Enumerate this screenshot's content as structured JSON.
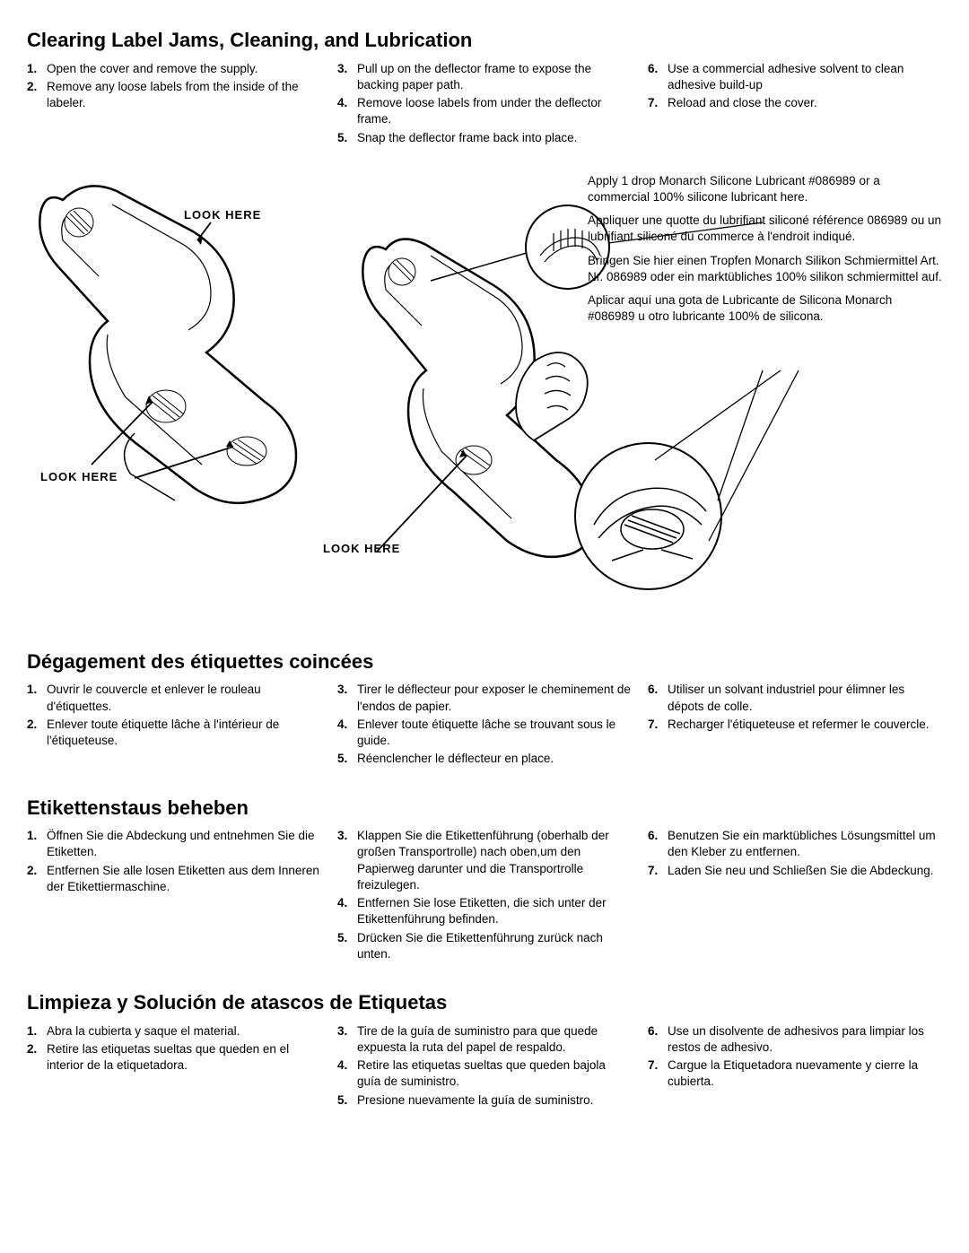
{
  "sections": {
    "en": {
      "title": "Clearing Label Jams, Cleaning, and Lubrication",
      "col1": [
        {
          "n": "1.",
          "t": "Open the cover and remove the supply."
        },
        {
          "n": "2.",
          "t": "Remove any loose labels from the inside of the labeler."
        }
      ],
      "col2": [
        {
          "n": "3.",
          "t": "Pull up on the deflector frame to expose the backing paper path."
        },
        {
          "n": "4.",
          "t": "Remove loose labels from under the deflector frame."
        },
        {
          "n": "5.",
          "t": "Snap the deflector frame back into place."
        }
      ],
      "col3": [
        {
          "n": "6.",
          "t": "Use a commercial adhesive solvent to clean adhesive build-up"
        },
        {
          "n": "7.",
          "t": "Reload and close the cover."
        }
      ]
    },
    "fr": {
      "title": "Dégagement des étiquettes coincées",
      "col1": [
        {
          "n": "1.",
          "t": "Ouvrir le couvercle et enlever le rouleau d'étiquettes."
        },
        {
          "n": "2.",
          "t": "Enlever toute étiquette lâche à l'intérieur de l'étiqueteuse."
        }
      ],
      "col2": [
        {
          "n": "3.",
          "t": "Tirer le déflecteur pour exposer le cheminement de l'endos de papier."
        },
        {
          "n": "4.",
          "t": "Enlever toute étiquette lâche se trouvant sous le guide."
        },
        {
          "n": "5.",
          "t": "Réenclencher le déflecteur en place."
        }
      ],
      "col3": [
        {
          "n": "6.",
          "t": "Utiliser un solvant industriel pour élimner les dépots de colle."
        },
        {
          "n": "7.",
          "t": "Recharger l'étiqueteuse et refermer le couvercle."
        }
      ]
    },
    "de": {
      "title": "Etikettenstaus beheben",
      "col1": [
        {
          "n": "1.",
          "t": "Öffnen Sie die Abdeckung und entnehmen Sie die Etiketten."
        },
        {
          "n": "2.",
          "t": "Entfernen Sie alle losen Etiketten aus dem Inneren der Etikettiermaschine."
        }
      ],
      "col2": [
        {
          "n": "3.",
          "t": "Klappen Sie die Etikettenführung (oberhalb der großen Transportrolle) nach oben,um den Papierweg darunter und die Transportrolle freizulegen."
        },
        {
          "n": "4.",
          "t": "Entfernen Sie lose Etiketten, die sich unter der Etikettenführung befinden."
        },
        {
          "n": "5.",
          "t": "Drücken Sie die Etikettenführung zurück nach unten."
        }
      ],
      "col3": [
        {
          "n": "6.",
          "t": "Benutzen Sie ein marktübliches Lösungsmittel um den Kleber zu entfernen."
        },
        {
          "n": "7.",
          "t": "Laden Sie neu und Schließen Sie die Abdeckung."
        }
      ]
    },
    "es": {
      "title": "Limpieza y Solución de atascos de Etiquetas",
      "col1": [
        {
          "n": "1.",
          "t": "Abra la cubierta y saque el material."
        },
        {
          "n": "2.",
          "t": "Retire las etiquetas sueltas que queden en el interior de la etiquetadora."
        }
      ],
      "col2": [
        {
          "n": "3.",
          "t": "Tire de la guía de suministro para que quede expuesta la ruta del papel de respaldo."
        },
        {
          "n": "4.",
          "t": "Retire las etiquetas sueltas que queden bajola guía de suministro."
        },
        {
          "n": "5.",
          "t": "Presione nuevamente la guía de suministro."
        }
      ],
      "col3": [
        {
          "n": "6.",
          "t": "Use un disolvente de adhesivos para limpiar los restos de adhesivo."
        },
        {
          "n": "7.",
          "t": "Cargue la Etiquetadora nuevamente y cierre la cubierta."
        }
      ]
    }
  },
  "labels": {
    "look1": "LOOK HERE",
    "look2": "LOOK HERE",
    "look3": "LOOK HERE"
  },
  "lubricant": {
    "en": "Apply 1 drop Monarch Silicone Lubricant #086989 or a commercial 100% silicone lubricant here.",
    "fr": "Appliquer une quotte du lubrifiant siliconé référence 086989 ou un lubrifiant siliconé du commerce à l'endroit indiqué.",
    "de": "Bringen Sie hier einen Tropfen Monarch Silikon Schmiermittel Art. Nr. 086989 oder ein marktübliches 100% silikon schmiermittel auf.",
    "es": "Aplicar aquí una gota de Lubricante de Silicona Monarch #086989 u otro lubricante 100% de silicona."
  }
}
